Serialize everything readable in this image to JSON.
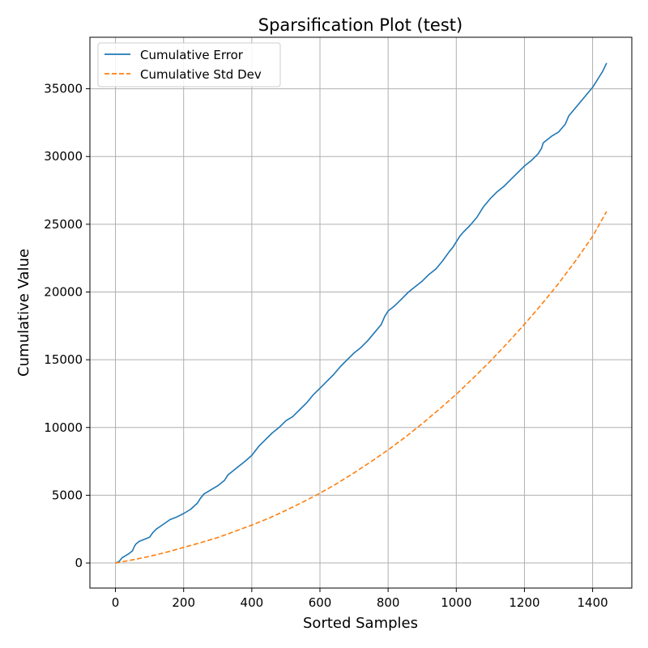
{
  "chart_data": {
    "type": "line",
    "title": "Sparsification Plot (test)",
    "xlabel": "Sorted Samples",
    "ylabel": "Cumulative Value",
    "xlim": [
      -75,
      1515
    ],
    "ylim": [
      -1850,
      38800
    ],
    "xticks": [
      0,
      200,
      400,
      600,
      800,
      1000,
      1200,
      1400
    ],
    "yticks": [
      0,
      5000,
      10000,
      15000,
      20000,
      25000,
      30000,
      35000
    ],
    "grid": true,
    "legend_position": "upper left",
    "series": [
      {
        "name": "Cumulative Error",
        "color": "#1f77b4",
        "style": "solid",
        "x": [
          0,
          10,
          20,
          30,
          40,
          50,
          55,
          60,
          70,
          80,
          100,
          110,
          120,
          140,
          160,
          180,
          200,
          220,
          240,
          250,
          260,
          280,
          300,
          320,
          330,
          340,
          360,
          380,
          400,
          420,
          440,
          460,
          480,
          500,
          520,
          540,
          560,
          580,
          600,
          620,
          640,
          660,
          680,
          700,
          720,
          740,
          760,
          780,
          790,
          800,
          820,
          840,
          860,
          880,
          900,
          920,
          940,
          960,
          980,
          990,
          1000,
          1010,
          1020,
          1040,
          1060,
          1080,
          1100,
          1120,
          1140,
          1160,
          1180,
          1200,
          1220,
          1240,
          1250,
          1255,
          1260,
          1280,
          1300,
          1320,
          1330,
          1340,
          1360,
          1380,
          1400,
          1410,
          1420,
          1430,
          1441
        ],
        "y": [
          0,
          100,
          400,
          550,
          700,
          900,
          1200,
          1400,
          1600,
          1700,
          1900,
          2250,
          2500,
          2850,
          3200,
          3400,
          3650,
          3950,
          4400,
          4800,
          5100,
          5400,
          5700,
          6100,
          6500,
          6700,
          7100,
          7500,
          7950,
          8600,
          9100,
          9600,
          10000,
          10500,
          10800,
          11300,
          11800,
          12400,
          12900,
          13400,
          13900,
          14500,
          15000,
          15500,
          15900,
          16400,
          17000,
          17600,
          18200,
          18600,
          19000,
          19500,
          20000,
          20400,
          20800,
          21300,
          21700,
          22300,
          23000,
          23300,
          23700,
          24100,
          24400,
          24900,
          25500,
          26300,
          26900,
          27400,
          27800,
          28300,
          28800,
          29300,
          29700,
          30200,
          30600,
          31000,
          31100,
          31500,
          31800,
          32400,
          33000,
          33300,
          33900,
          34500,
          35100,
          35500,
          35900,
          36300,
          36900
        ]
      },
      {
        "name": "Cumulative Std Dev",
        "color": "#ff7f0e",
        "style": "dashed",
        "x": [
          0,
          50,
          100,
          150,
          200,
          250,
          300,
          350,
          400,
          450,
          500,
          550,
          600,
          650,
          700,
          750,
          800,
          850,
          900,
          950,
          1000,
          1050,
          1100,
          1150,
          1200,
          1250,
          1300,
          1350,
          1400,
          1441
        ],
        "y": [
          0,
          230,
          490,
          800,
          1150,
          1500,
          1880,
          2330,
          2800,
          3300,
          3880,
          4500,
          5150,
          5870,
          6650,
          7480,
          8350,
          9280,
          10280,
          11350,
          12450,
          13650,
          14900,
          16230,
          17620,
          19080,
          20620,
          22300,
          24100,
          25950
        ]
      }
    ]
  }
}
